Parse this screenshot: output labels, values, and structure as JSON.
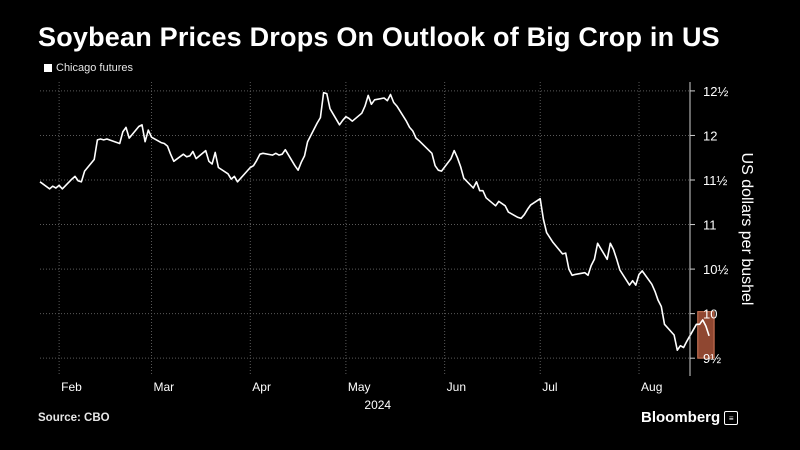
{
  "title": "Soybean Prices Drops On Outlook of Big Crop in US",
  "legend_label": "Chicago futures",
  "source": "Source: CBO",
  "brand": "Bloomberg",
  "chart_data": {
    "type": "line",
    "ylabel": "US dollars per bushel",
    "xlabel": "2024",
    "ylim": [
      9.3,
      12.6
    ],
    "y_ticks": [
      {
        "value": 9.5,
        "label": "9½"
      },
      {
        "value": 10,
        "label": "10"
      },
      {
        "value": 10.5,
        "label": "10½"
      },
      {
        "value": 11,
        "label": "11"
      },
      {
        "value": 11.5,
        "label": "11½"
      },
      {
        "value": 12,
        "label": "12"
      },
      {
        "value": 12.5,
        "label": "12½"
      }
    ],
    "x_ticks": [
      {
        "date": "2024-02-01",
        "label": "Feb"
      },
      {
        "date": "2024-03-01",
        "label": "Mar"
      },
      {
        "date": "2024-04-01",
        "label": "Apr"
      },
      {
        "date": "2024-05-01",
        "label": "May"
      },
      {
        "date": "2024-06-01",
        "label": "Jun"
      },
      {
        "date": "2024-07-01",
        "label": "Jul"
      },
      {
        "date": "2024-08-01",
        "label": "Aug"
      }
    ],
    "xlim": [
      "2024-01-26",
      "2024-08-17"
    ],
    "grid": true,
    "series": [
      {
        "name": "Chicago futures",
        "color": "#ffffff",
        "points": [
          [
            "2024-01-26",
            11.48
          ],
          [
            "2024-01-29",
            11.4
          ],
          [
            "2024-01-30",
            11.43
          ],
          [
            "2024-01-31",
            11.41
          ],
          [
            "2024-02-01",
            11.44
          ],
          [
            "2024-02-02",
            11.4
          ],
          [
            "2024-02-05",
            11.51
          ],
          [
            "2024-02-06",
            11.54
          ],
          [
            "2024-02-07",
            11.49
          ],
          [
            "2024-02-08",
            11.48
          ],
          [
            "2024-02-09",
            11.6
          ],
          [
            "2024-02-12",
            11.73
          ],
          [
            "2024-02-13",
            11.95
          ],
          [
            "2024-02-14",
            11.96
          ],
          [
            "2024-02-15",
            11.95
          ],
          [
            "2024-02-16",
            11.96
          ],
          [
            "2024-02-20",
            11.91
          ],
          [
            "2024-02-21",
            12.04
          ],
          [
            "2024-02-22",
            12.09
          ],
          [
            "2024-02-23",
            11.97
          ],
          [
            "2024-02-26",
            12.1
          ],
          [
            "2024-02-27",
            12.12
          ],
          [
            "2024-02-28",
            11.93
          ],
          [
            "2024-02-29",
            12.06
          ],
          [
            "2024-03-01",
            11.98
          ],
          [
            "2024-03-04",
            11.92
          ],
          [
            "2024-03-05",
            11.91
          ],
          [
            "2024-03-06",
            11.88
          ],
          [
            "2024-03-07",
            11.79
          ],
          [
            "2024-03-08",
            11.71
          ],
          [
            "2024-03-11",
            11.79
          ],
          [
            "2024-03-12",
            11.76
          ],
          [
            "2024-03-13",
            11.77
          ],
          [
            "2024-03-14",
            11.82
          ],
          [
            "2024-03-15",
            11.74
          ],
          [
            "2024-03-18",
            11.83
          ],
          [
            "2024-03-19",
            11.71
          ],
          [
            "2024-03-20",
            11.68
          ],
          [
            "2024-03-21",
            11.81
          ],
          [
            "2024-03-22",
            11.64
          ],
          [
            "2024-03-25",
            11.57
          ],
          [
            "2024-03-26",
            11.51
          ],
          [
            "2024-03-27",
            11.54
          ],
          [
            "2024-03-28",
            11.48
          ],
          [
            "2024-04-01",
            11.64
          ],
          [
            "2024-04-02",
            11.66
          ],
          [
            "2024-04-03",
            11.72
          ],
          [
            "2024-04-04",
            11.79
          ],
          [
            "2024-04-05",
            11.8
          ],
          [
            "2024-04-08",
            11.78
          ],
          [
            "2024-04-09",
            11.8
          ],
          [
            "2024-04-10",
            11.78
          ],
          [
            "2024-04-11",
            11.79
          ],
          [
            "2024-04-12",
            11.84
          ],
          [
            "2024-04-15",
            11.66
          ],
          [
            "2024-04-16",
            11.61
          ],
          [
            "2024-04-17",
            11.7
          ],
          [
            "2024-04-18",
            11.77
          ],
          [
            "2024-04-19",
            11.93
          ],
          [
            "2024-04-22",
            12.14
          ],
          [
            "2024-04-23",
            12.2
          ],
          [
            "2024-04-24",
            12.48
          ],
          [
            "2024-04-25",
            12.47
          ],
          [
            "2024-04-26",
            12.3
          ],
          [
            "2024-04-29",
            12.12
          ],
          [
            "2024-04-30",
            12.17
          ],
          [
            "2024-05-01",
            12.21
          ],
          [
            "2024-05-02",
            12.19
          ],
          [
            "2024-05-03",
            12.16
          ],
          [
            "2024-05-06",
            12.25
          ],
          [
            "2024-05-07",
            12.33
          ],
          [
            "2024-05-08",
            12.45
          ],
          [
            "2024-05-09",
            12.35
          ],
          [
            "2024-05-10",
            12.4
          ],
          [
            "2024-05-13",
            12.42
          ],
          [
            "2024-05-14",
            12.39
          ],
          [
            "2024-05-15",
            12.46
          ],
          [
            "2024-05-16",
            12.37
          ],
          [
            "2024-05-17",
            12.33
          ],
          [
            "2024-05-20",
            12.16
          ],
          [
            "2024-05-21",
            12.09
          ],
          [
            "2024-05-22",
            12.05
          ],
          [
            "2024-05-23",
            11.97
          ],
          [
            "2024-05-24",
            11.94
          ],
          [
            "2024-05-28",
            11.8
          ],
          [
            "2024-05-29",
            11.66
          ],
          [
            "2024-05-30",
            11.61
          ],
          [
            "2024-05-31",
            11.6
          ],
          [
            "2024-06-03",
            11.74
          ],
          [
            "2024-06-04",
            11.83
          ],
          [
            "2024-06-05",
            11.75
          ],
          [
            "2024-06-06",
            11.65
          ],
          [
            "2024-06-07",
            11.52
          ],
          [
            "2024-06-10",
            11.41
          ],
          [
            "2024-06-11",
            11.48
          ],
          [
            "2024-06-12",
            11.38
          ],
          [
            "2024-06-13",
            11.38
          ],
          [
            "2024-06-14",
            11.3
          ],
          [
            "2024-06-17",
            11.21
          ],
          [
            "2024-06-18",
            11.26
          ],
          [
            "2024-06-20",
            11.21
          ],
          [
            "2024-06-21",
            11.14
          ],
          [
            "2024-06-24",
            11.08
          ],
          [
            "2024-06-25",
            11.07
          ],
          [
            "2024-06-26",
            11.11
          ],
          [
            "2024-06-27",
            11.17
          ],
          [
            "2024-06-28",
            11.22
          ],
          [
            "2024-07-01",
            11.29
          ],
          [
            "2024-07-02",
            11.06
          ],
          [
            "2024-07-03",
            10.91
          ],
          [
            "2024-07-05",
            10.8
          ],
          [
            "2024-07-08",
            10.67
          ],
          [
            "2024-07-09",
            10.68
          ],
          [
            "2024-07-10",
            10.5
          ],
          [
            "2024-07-11",
            10.43
          ],
          [
            "2024-07-12",
            10.44
          ],
          [
            "2024-07-15",
            10.46
          ],
          [
            "2024-07-16",
            10.43
          ],
          [
            "2024-07-17",
            10.54
          ],
          [
            "2024-07-18",
            10.61
          ],
          [
            "2024-07-19",
            10.79
          ],
          [
            "2024-07-22",
            10.61
          ],
          [
            "2024-07-23",
            10.79
          ],
          [
            "2024-07-24",
            10.72
          ],
          [
            "2024-07-25",
            10.61
          ],
          [
            "2024-07-26",
            10.49
          ],
          [
            "2024-07-29",
            10.32
          ],
          [
            "2024-07-30",
            10.37
          ],
          [
            "2024-07-31",
            10.32
          ],
          [
            "2024-08-01",
            10.44
          ],
          [
            "2024-08-02",
            10.48
          ],
          [
            "2024-08-05",
            10.33
          ],
          [
            "2024-08-06",
            10.25
          ],
          [
            "2024-08-07",
            10.15
          ],
          [
            "2024-08-08",
            10.08
          ],
          [
            "2024-08-09",
            9.88
          ],
          [
            "2024-08-12",
            9.76
          ],
          [
            "2024-08-13",
            9.59
          ],
          [
            "2024-08-14",
            9.64
          ],
          [
            "2024-08-15",
            9.62
          ],
          [
            "2024-08-16",
            9.69
          ],
          [
            "2024-08-19",
            9.88
          ],
          [
            "2024-08-20",
            9.88
          ],
          [
            "2024-08-21",
            9.93
          ],
          [
            "2024-08-22",
            9.86
          ],
          [
            "2024-08-23",
            9.75
          ]
        ]
      }
    ],
    "highlight": {
      "start": "2024-08-21",
      "end": "2024-08-23",
      "color": "#a8543a"
    }
  }
}
